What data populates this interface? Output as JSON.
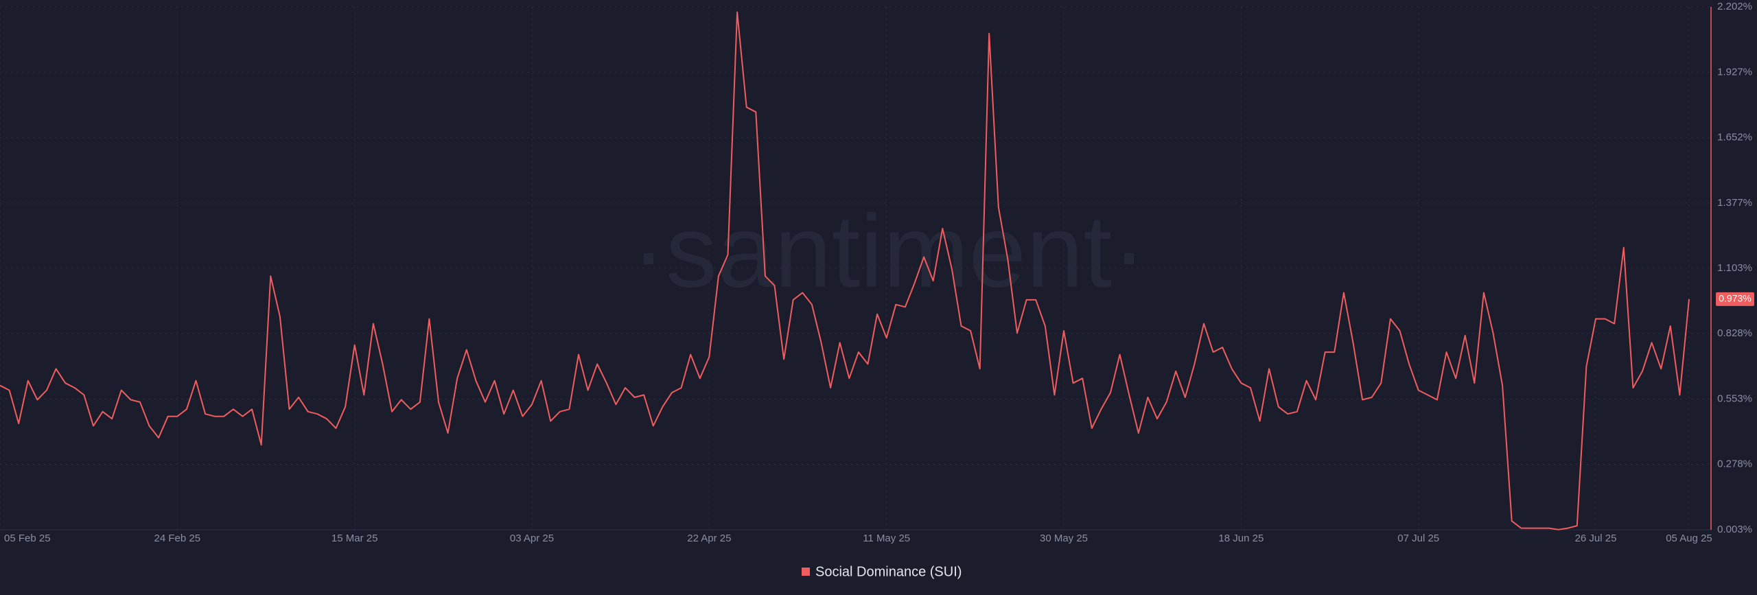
{
  "chart_data": {
    "type": "line",
    "watermark": "·santiment·",
    "categories": [
      "05 Feb 25",
      null,
      null,
      null,
      null,
      null,
      null,
      null,
      null,
      null,
      null,
      null,
      null,
      null,
      null,
      null,
      null,
      null,
      null,
      "24 Feb 25",
      null,
      null,
      null,
      null,
      null,
      null,
      null,
      null,
      null,
      null,
      null,
      null,
      null,
      null,
      null,
      null,
      null,
      null,
      "15 Mar 25",
      null,
      null,
      null,
      null,
      null,
      null,
      null,
      null,
      null,
      null,
      null,
      null,
      null,
      null,
      null,
      null,
      null,
      null,
      "03 Apr 25",
      null,
      null,
      null,
      null,
      null,
      null,
      null,
      null,
      null,
      null,
      null,
      null,
      null,
      null,
      null,
      null,
      null,
      null,
      "22 Apr 25",
      null,
      null,
      null,
      null,
      null,
      null,
      null,
      null,
      null,
      null,
      null,
      null,
      null,
      null,
      null,
      null,
      null,
      null,
      "11 May 25",
      null,
      null,
      null,
      null,
      null,
      null,
      null,
      null,
      null,
      null,
      null,
      null,
      null,
      null,
      null,
      null,
      null,
      null,
      "30 May 25",
      null,
      null,
      null,
      null,
      null,
      null,
      null,
      null,
      null,
      null,
      null,
      null,
      null,
      null,
      null,
      null,
      null,
      null,
      "18 Jun 25",
      null,
      null,
      null,
      null,
      null,
      null,
      null,
      null,
      null,
      null,
      null,
      null,
      null,
      null,
      null,
      null,
      null,
      null,
      "07 Jul 25",
      null,
      null,
      null,
      null,
      null,
      null,
      null,
      null,
      null,
      null,
      null,
      null,
      null,
      null,
      null,
      null,
      null,
      null,
      "26 Jul 25",
      null,
      null,
      null,
      null,
      null,
      null,
      null,
      null,
      null,
      "05 Aug 25"
    ],
    "series": [
      {
        "name": "Social Dominance (SUI)",
        "color": "#f05d5e",
        "axis": "y2",
        "last_label": "0.973%",
        "values": [
          0.61,
          0.59,
          0.45,
          0.63,
          0.55,
          0.59,
          0.68,
          0.62,
          0.6,
          0.57,
          0.44,
          0.5,
          0.47,
          0.59,
          0.55,
          0.54,
          0.44,
          0.39,
          0.48,
          0.48,
          0.51,
          0.63,
          0.49,
          0.48,
          0.48,
          0.51,
          0.48,
          0.51,
          0.36,
          1.07,
          0.9,
          0.51,
          0.56,
          0.5,
          0.49,
          0.47,
          0.43,
          0.52,
          0.78,
          0.57,
          0.87,
          0.7,
          0.5,
          0.55,
          0.51,
          0.54,
          0.89,
          0.54,
          0.41,
          0.64,
          0.76,
          0.63,
          0.54,
          0.63,
          0.49,
          0.59,
          0.48,
          0.53,
          0.63,
          0.46,
          0.5,
          0.51,
          0.74,
          0.59,
          0.7,
          0.62,
          0.53,
          0.6,
          0.56,
          0.57,
          0.44,
          0.52,
          0.58,
          0.6,
          0.74,
          0.64,
          0.73,
          1.07,
          1.16,
          2.18,
          1.78,
          1.76,
          1.07,
          1.03,
          0.72,
          0.97,
          1.0,
          0.95,
          0.79,
          0.6,
          0.79,
          0.64,
          0.75,
          0.7,
          0.91,
          0.81,
          0.95,
          0.94,
          1.04,
          1.15,
          1.05,
          1.27,
          1.1,
          0.86,
          0.84,
          0.68,
          2.09,
          1.36,
          1.14,
          0.83,
          0.97,
          0.97,
          0.86,
          0.57,
          0.84,
          0.62,
          0.64,
          0.43,
          0.51,
          0.58,
          0.74,
          0.57,
          0.41,
          0.56,
          0.47,
          0.54,
          0.67,
          0.56,
          0.7,
          0.87,
          0.75,
          0.77,
          0.68,
          0.62,
          0.6,
          0.46,
          0.68,
          0.52,
          0.49,
          0.5,
          0.63,
          0.55,
          0.75,
          0.75,
          1.0,
          0.79,
          0.55,
          0.56,
          0.62,
          0.89,
          0.84,
          0.7,
          0.59,
          0.57,
          0.55,
          0.75,
          0.64,
          0.82,
          0.62,
          1.0,
          0.83,
          0.61,
          0.04,
          0.01,
          0.01,
          0.01,
          0.01,
          0.004,
          0.01,
          0.02,
          0.69,
          0.89,
          0.89,
          0.87,
          1.19,
          0.6,
          0.67,
          0.79,
          0.68,
          0.86,
          0.57,
          0.973
        ]
      }
    ],
    "y2lim": [
      0.003,
      2.202
    ],
    "y2ticks": [
      {
        "value": 0.003,
        "label": "0.003%"
      },
      {
        "value": 0.278,
        "label": "0.278%"
      },
      {
        "value": 0.553,
        "label": "0.553%"
      },
      {
        "value": 0.828,
        "label": "0.828%"
      },
      {
        "value": 1.103,
        "label": "1.103%"
      },
      {
        "value": 1.377,
        "label": "1.377%"
      },
      {
        "value": 1.652,
        "label": "1.652%"
      },
      {
        "value": 1.927,
        "label": "1.927%"
      },
      {
        "value": 2.202,
        "label": "2.202%"
      }
    ],
    "grid": true
  }
}
